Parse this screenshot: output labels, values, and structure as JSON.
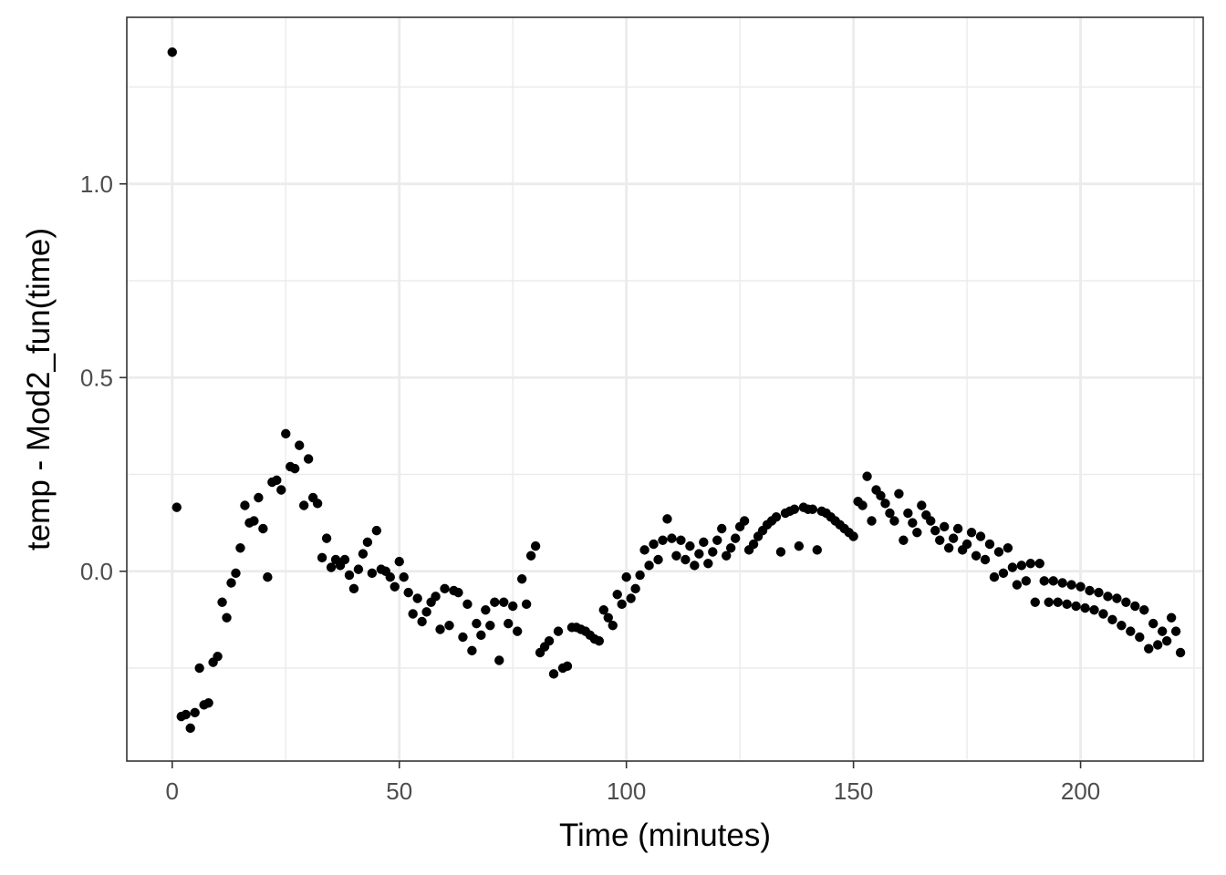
{
  "chart_data": {
    "type": "scatter",
    "title": "",
    "xlabel": "Time (minutes)",
    "ylabel": "temp - Mod2_fun(time)",
    "xlim": [
      -10,
      227
    ],
    "ylim": [
      -0.49,
      1.43
    ],
    "x_ticks": [
      0,
      50,
      100,
      150,
      200
    ],
    "x_tick_labels": [
      "0",
      "50",
      "100",
      "150",
      "200"
    ],
    "y_ticks": [
      0.0,
      0.5,
      1.0
    ],
    "y_tick_labels": [
      "0.0",
      "0.5",
      "1.0"
    ],
    "grid": true,
    "legend": "none",
    "theme": "bw",
    "colors": {
      "points": "#000000",
      "grid_major": "#ebebeb",
      "grid_minor": "#ebebeb",
      "panel_border": "#333333",
      "tick_label": "#4d4d4d"
    },
    "series": [
      {
        "points": [
          [
            0,
            1.34
          ],
          [
            1,
            0.165
          ],
          [
            2,
            -0.375
          ],
          [
            3,
            -0.37
          ],
          [
            4,
            -0.405
          ],
          [
            5,
            -0.365
          ],
          [
            6,
            -0.25
          ],
          [
            7,
            -0.345
          ],
          [
            8,
            -0.34
          ],
          [
            9,
            -0.235
          ],
          [
            10,
            -0.22
          ],
          [
            11,
            -0.08
          ],
          [
            12,
            -0.12
          ],
          [
            13,
            -0.03
          ],
          [
            14,
            -0.005
          ],
          [
            15,
            0.06
          ],
          [
            16,
            0.17
          ],
          [
            17,
            0.125
          ],
          [
            18,
            0.13
          ],
          [
            19,
            0.19
          ],
          [
            20,
            0.11
          ],
          [
            21,
            -0.015
          ],
          [
            22,
            0.23
          ],
          [
            23,
            0.235
          ],
          [
            24,
            0.21
          ],
          [
            25,
            0.355
          ],
          [
            26,
            0.27
          ],
          [
            27,
            0.265
          ],
          [
            28,
            0.325
          ],
          [
            29,
            0.17
          ],
          [
            30,
            0.29
          ],
          [
            31,
            0.19
          ],
          [
            32,
            0.175
          ],
          [
            33,
            0.035
          ],
          [
            34,
            0.085
          ],
          [
            35,
            0.01
          ],
          [
            36,
            0.03
          ],
          [
            37,
            0.015
          ],
          [
            38,
            0.03
          ],
          [
            39,
            -0.01
          ],
          [
            40,
            -0.045
          ],
          [
            41,
            0.005
          ],
          [
            42,
            0.045
          ],
          [
            43,
            0.075
          ],
          [
            44,
            -0.005
          ],
          [
            45,
            0.105
          ],
          [
            46,
            0.005
          ],
          [
            47,
            0.0
          ],
          [
            48,
            -0.015
          ],
          [
            49,
            -0.04
          ],
          [
            50,
            0.025
          ],
          [
            51,
            -0.015
          ],
          [
            52,
            -0.055
          ],
          [
            53,
            -0.11
          ],
          [
            54,
            -0.07
          ],
          [
            55,
            -0.13
          ],
          [
            56,
            -0.105
          ],
          [
            57,
            -0.08
          ],
          [
            58,
            -0.065
          ],
          [
            59,
            -0.15
          ],
          [
            60,
            -0.045
          ],
          [
            61,
            -0.14
          ],
          [
            62,
            -0.05
          ],
          [
            63,
            -0.055
          ],
          [
            64,
            -0.17
          ],
          [
            65,
            -0.085
          ],
          [
            66,
            -0.205
          ],
          [
            67,
            -0.135
          ],
          [
            68,
            -0.165
          ],
          [
            69,
            -0.1
          ],
          [
            70,
            -0.14
          ],
          [
            71,
            -0.08
          ],
          [
            72,
            -0.23
          ],
          [
            73,
            -0.08
          ],
          [
            74,
            -0.135
          ],
          [
            75,
            -0.09
          ],
          [
            76,
            -0.155
          ],
          [
            77,
            -0.02
          ],
          [
            78,
            -0.085
          ],
          [
            79,
            0.04
          ],
          [
            80,
            0.065
          ],
          [
            81,
            -0.21
          ],
          [
            82,
            -0.195
          ],
          [
            83,
            -0.18
          ],
          [
            84,
            -0.265
          ],
          [
            85,
            -0.155
          ],
          [
            86,
            -0.25
          ],
          [
            87,
            -0.245
          ],
          [
            88,
            -0.145
          ],
          [
            89,
            -0.145
          ],
          [
            90,
            -0.15
          ],
          [
            91,
            -0.155
          ],
          [
            92,
            -0.165
          ],
          [
            93,
            -0.175
          ],
          [
            94,
            -0.18
          ],
          [
            95,
            -0.1
          ],
          [
            96,
            -0.12
          ],
          [
            97,
            -0.14
          ],
          [
            98,
            -0.06
          ],
          [
            99,
            -0.085
          ],
          [
            100,
            -0.015
          ],
          [
            101,
            -0.07
          ],
          [
            102,
            -0.045
          ],
          [
            103,
            -0.01
          ],
          [
            104,
            0.055
          ],
          [
            105,
            0.015
          ],
          [
            106,
            0.07
          ],
          [
            107,
            0.03
          ],
          [
            108,
            0.08
          ],
          [
            109,
            0.135
          ],
          [
            110,
            0.085
          ],
          [
            111,
            0.04
          ],
          [
            112,
            0.08
          ],
          [
            113,
            0.03
          ],
          [
            114,
            0.065
          ],
          [
            115,
            0.015
          ],
          [
            116,
            0.045
          ],
          [
            117,
            0.075
          ],
          [
            118,
            0.02
          ],
          [
            119,
            0.05
          ],
          [
            120,
            0.08
          ],
          [
            121,
            0.11
          ],
          [
            122,
            0.04
          ],
          [
            123,
            0.06
          ],
          [
            124,
            0.085
          ],
          [
            125,
            0.115
          ],
          [
            126,
            0.13
          ],
          [
            127,
            0.055
          ],
          [
            128,
            0.07
          ],
          [
            129,
            0.09
          ],
          [
            130,
            0.105
          ],
          [
            131,
            0.12
          ],
          [
            132,
            0.13
          ],
          [
            133,
            0.14
          ],
          [
            134,
            0.05
          ],
          [
            135,
            0.15
          ],
          [
            136,
            0.155
          ],
          [
            137,
            0.16
          ],
          [
            138,
            0.065
          ],
          [
            139,
            0.165
          ],
          [
            140,
            0.16
          ],
          [
            141,
            0.16
          ],
          [
            142,
            0.055
          ],
          [
            143,
            0.155
          ],
          [
            144,
            0.15
          ],
          [
            145,
            0.14
          ],
          [
            146,
            0.13
          ],
          [
            147,
            0.12
          ],
          [
            148,
            0.11
          ],
          [
            149,
            0.1
          ],
          [
            150,
            0.09
          ],
          [
            151,
            0.18
          ],
          [
            152,
            0.17
          ],
          [
            153,
            0.245
          ],
          [
            154,
            0.13
          ],
          [
            155,
            0.21
          ],
          [
            156,
            0.195
          ],
          [
            157,
            0.175
          ],
          [
            158,
            0.15
          ],
          [
            159,
            0.13
          ],
          [
            160,
            0.2
          ],
          [
            161,
            0.08
          ],
          [
            162,
            0.15
          ],
          [
            163,
            0.125
          ],
          [
            164,
            0.1
          ],
          [
            165,
            0.17
          ],
          [
            166,
            0.145
          ],
          [
            167,
            0.13
          ],
          [
            168,
            0.105
          ],
          [
            169,
            0.08
          ],
          [
            170,
            0.115
          ],
          [
            171,
            0.06
          ],
          [
            172,
            0.085
          ],
          [
            173,
            0.11
          ],
          [
            174,
            0.055
          ],
          [
            175,
            0.07
          ],
          [
            176,
            0.1
          ],
          [
            177,
            0.04
          ],
          [
            178,
            0.09
          ],
          [
            179,
            0.03
          ],
          [
            180,
            0.07
          ],
          [
            181,
            -0.015
          ],
          [
            182,
            0.05
          ],
          [
            183,
            -0.005
          ],
          [
            184,
            0.06
          ],
          [
            185,
            0.01
          ],
          [
            186,
            -0.035
          ],
          [
            187,
            0.015
          ],
          [
            188,
            -0.025
          ],
          [
            189,
            0.02
          ],
          [
            190,
            -0.08
          ],
          [
            191,
            0.02
          ],
          [
            192,
            -0.025
          ],
          [
            193,
            -0.08
          ],
          [
            194,
            -0.025
          ],
          [
            195,
            -0.08
          ],
          [
            196,
            -0.03
          ],
          [
            197,
            -0.085
          ],
          [
            198,
            -0.035
          ],
          [
            199,
            -0.09
          ],
          [
            200,
            -0.04
          ],
          [
            201,
            -0.095
          ],
          [
            202,
            -0.05
          ],
          [
            203,
            -0.1
          ],
          [
            204,
            -0.055
          ],
          [
            205,
            -0.11
          ],
          [
            206,
            -0.065
          ],
          [
            207,
            -0.125
          ],
          [
            208,
            -0.07
          ],
          [
            209,
            -0.14
          ],
          [
            210,
            -0.08
          ],
          [
            211,
            -0.155
          ],
          [
            212,
            -0.09
          ],
          [
            213,
            -0.17
          ],
          [
            214,
            -0.1
          ],
          [
            215,
            -0.2
          ],
          [
            216,
            -0.135
          ],
          [
            217,
            -0.19
          ],
          [
            218,
            -0.155
          ],
          [
            219,
            -0.18
          ],
          [
            220,
            -0.12
          ],
          [
            221,
            -0.155
          ],
          [
            222,
            -0.21
          ]
        ]
      }
    ]
  }
}
